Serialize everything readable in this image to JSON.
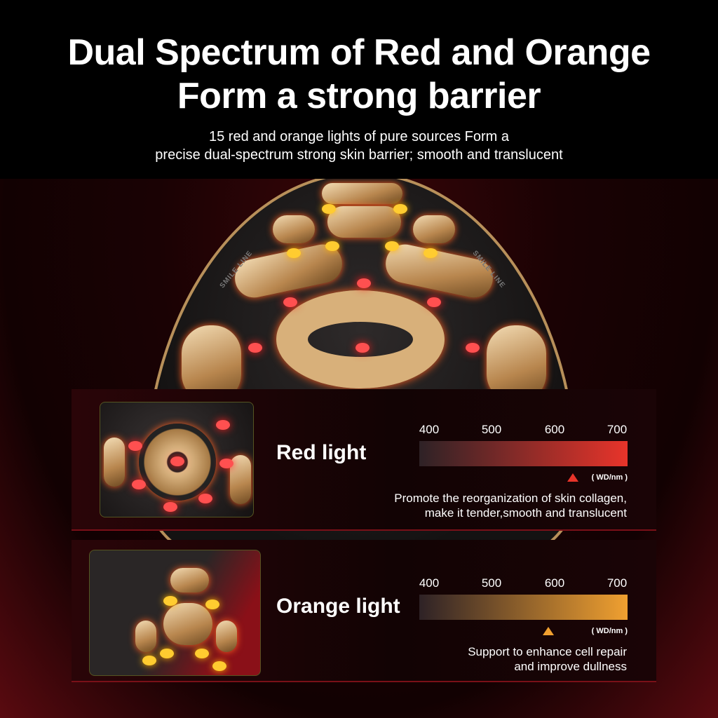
{
  "header": {
    "title_line1": "Dual Spectrum of Red and Orange",
    "title_line2": "Form a strong barrier",
    "subtitle_line1": "15 red and orange lights of pure sources Form a",
    "subtitle_line2": "precise dual-spectrum strong skin barrier; smooth and translucent"
  },
  "device": {
    "engraving_left": "SMILE LINE",
    "engraving_right": "SMILE LINE"
  },
  "cards": [
    {
      "label": "Red light",
      "ticks": [
        "400",
        "500",
        "600",
        "700"
      ],
      "unit": "( WD/nm )",
      "marker_wavelength_nm": 630,
      "color": "#e8342a",
      "desc_line1": "Promote the reorganization of skin collagen,",
      "desc_line2": "make it tender,smooth and translucent"
    },
    {
      "label": "Orange light",
      "ticks": [
        "400",
        "500",
        "600",
        "700"
      ],
      "unit": "( WD/nm )",
      "marker_wavelength_nm": 590,
      "color": "#f0a030",
      "desc_line1": "Support to enhance cell repair",
      "desc_line2": "and improve dullness"
    }
  ]
}
